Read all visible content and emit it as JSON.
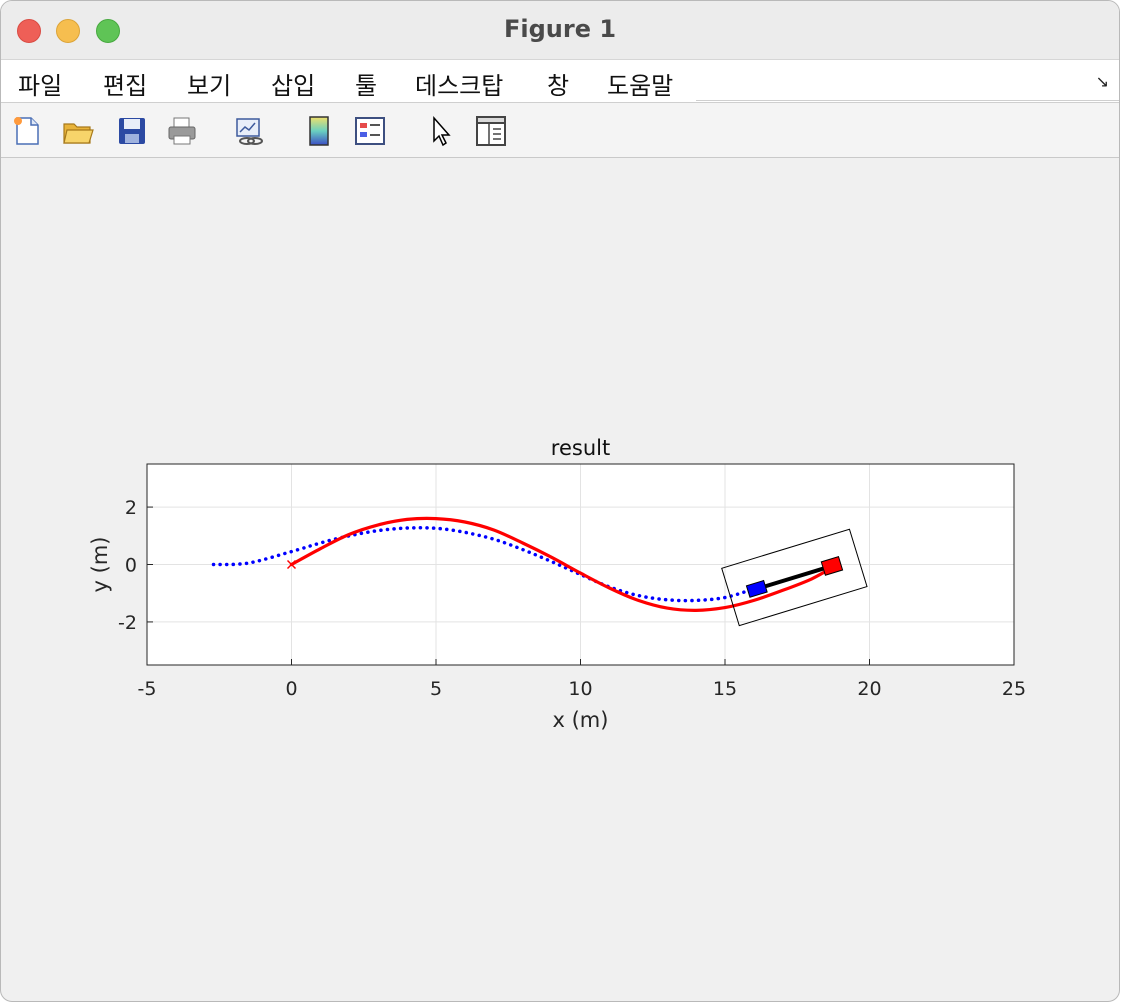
{
  "window": {
    "title": "Figure 1"
  },
  "menu": {
    "items": [
      "파일",
      "편집",
      "보기",
      "삽입",
      "툴",
      "데스크탑",
      "창",
      "도움말"
    ],
    "corner_icon": "dock-arrow-icon"
  },
  "toolbar": {
    "tools": [
      "new-figure-icon",
      "open-file-icon",
      "save-icon",
      "print-icon",
      "link-plot-icon",
      "colorbar-icon",
      "legend-icon",
      "edit-plot-cursor-icon",
      "property-inspector-icon"
    ]
  },
  "chart_data": {
    "type": "line",
    "title": "result",
    "xlabel": "x (m)",
    "ylabel": "y (m)",
    "xlim": [
      -5,
      25
    ],
    "ylim": [
      -3.5,
      3.5
    ],
    "xticks": [
      -5,
      0,
      5,
      10,
      15,
      20,
      25
    ],
    "yticks": [
      -2,
      0,
      2
    ],
    "grid": true,
    "series": [
      {
        "color": "#0000ff",
        "style": "dotted",
        "x": [
          -2.7,
          -1.5,
          0,
          1,
          2,
          3,
          4,
          5,
          6,
          7,
          8,
          9,
          10,
          11,
          12,
          13,
          14,
          15,
          16
        ],
        "y": [
          0.0,
          0.05,
          0.45,
          0.75,
          1.0,
          1.18,
          1.27,
          1.26,
          1.12,
          0.88,
          0.52,
          0.1,
          -0.35,
          -0.78,
          -1.08,
          -1.23,
          -1.25,
          -1.15,
          -0.85
        ]
      },
      {
        "color": "#ff0000",
        "style": "solid",
        "x": [
          0,
          1,
          2,
          3,
          4,
          5,
          6,
          7,
          8,
          9,
          10,
          11,
          12,
          13,
          14,
          15,
          16,
          17,
          18,
          18.8
        ],
        "y": [
          0.0,
          0.55,
          1.05,
          1.38,
          1.57,
          1.6,
          1.48,
          1.2,
          0.75,
          0.25,
          -0.3,
          -0.82,
          -1.25,
          -1.52,
          -1.6,
          -1.5,
          -1.25,
          -0.9,
          -0.5,
          -0.05
        ]
      }
    ],
    "start_marker": {
      "x": 0,
      "y": 0,
      "symbol": "x",
      "color": "#ff0000"
    },
    "vehicle": {
      "front": {
        "x": 18.7,
        "y": -0.05,
        "color": "#ff0000"
      },
      "rear": {
        "x": 16.1,
        "y": -0.85,
        "color": "#0000ff"
      },
      "box_color": "#000000"
    }
  }
}
